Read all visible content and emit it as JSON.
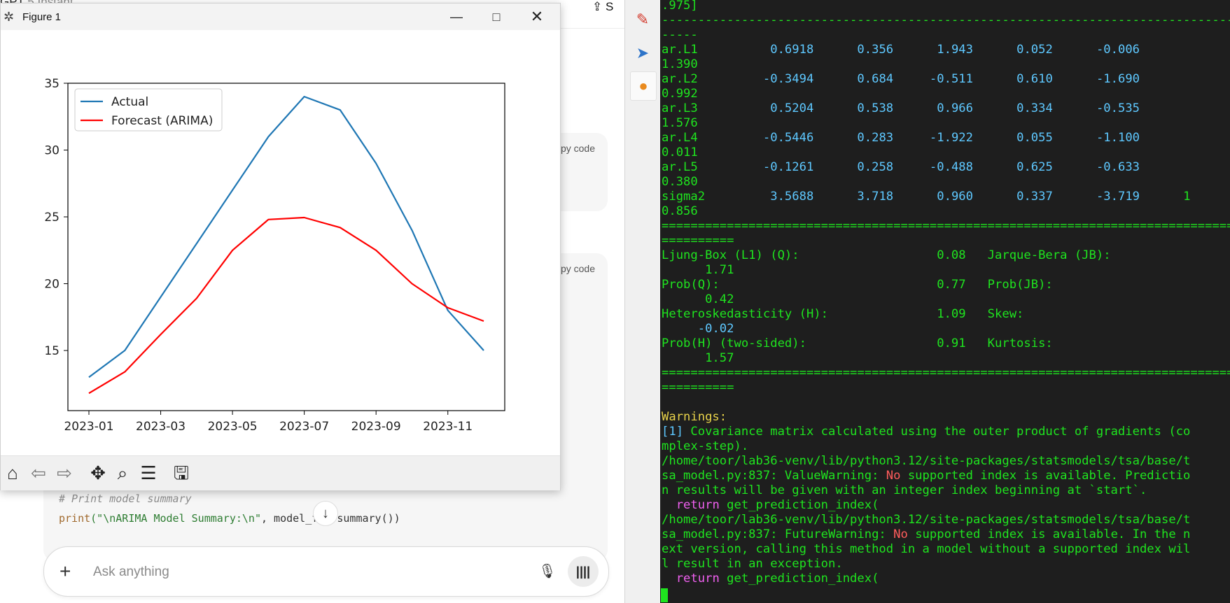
{
  "chat": {
    "title": "GPT",
    "title_sub": "5 Instant",
    "share_label": "S",
    "copy_code_label": "Copy code",
    "code_comment": "# Print model summary",
    "code_print_fn": "print",
    "code_print_str": "(\"\\nARIMA Model Summary:\\n\"",
    "code_print_rest": ", model_fit.summary())",
    "input_placeholder": "Ask anything"
  },
  "figure": {
    "window_title": "Figure 1",
    "toolbar_icons": [
      "home-icon",
      "back-arrow-icon",
      "forward-arrow-icon",
      "pan-icon",
      "zoom-icon",
      "configure-subplots-icon",
      "save-icon"
    ]
  },
  "chart_data": {
    "type": "line",
    "x": [
      "2023-01",
      "2023-02",
      "2023-03",
      "2023-04",
      "2023-05",
      "2023-06",
      "2023-07",
      "2023-08",
      "2023-09",
      "2023-10",
      "2023-11",
      "2023-12"
    ],
    "xticks": [
      "2023-01",
      "2023-03",
      "2023-05",
      "2023-07",
      "2023-09",
      "2023-11"
    ],
    "yticks": [
      15,
      20,
      25,
      30,
      35
    ],
    "ylim": [
      10.5,
      35
    ],
    "series": [
      {
        "name": "Actual",
        "color": "#1f77b4",
        "values": [
          13,
          15,
          19,
          23,
          27,
          31,
          34,
          33,
          29,
          24,
          18,
          15
        ]
      },
      {
        "name": "Forecast (ARIMA)",
        "color": "#ff0000",
        "values": [
          11.8,
          13.4,
          16.2,
          18.9,
          22.5,
          24.8,
          24.95,
          24.2,
          22.5,
          20.0,
          18.2,
          17.2
        ]
      }
    ],
    "legend": "top-left",
    "grid": false,
    "title": "",
    "xlabel": "",
    "ylabel": ""
  },
  "terminal": {
    "lines": [
      ".975]",
      "-----------------------------------------------------------------------------------",
      "-----",
      "ar.L1          0.6918      0.356      1.943      0.052      -0.006",
      "1.390",
      "ar.L2         -0.3494      0.684     -0.511      0.610      -1.690",
      "0.992",
      "ar.L3          0.5204      0.538      0.966      0.334      -0.535",
      "1.576",
      "ar.L4         -0.5446      0.283     -1.922      0.055      -1.100",
      "0.011",
      "ar.L5         -0.1261      0.258     -0.488      0.625      -0.633",
      "0.380",
      "sigma2         3.5688      3.718      0.960      0.337      -3.719      1",
      "0.856",
      "===================================================================================",
      "==========",
      "Ljung-Box (L1) (Q):                   0.08   Jarque-Bera (JB):",
      "      1.71",
      "Prob(Q):                              0.77   Prob(JB):",
      "      0.42",
      "Heteroskedasticity (H):               1.09   Skew:",
      "     -0.02",
      "Prob(H) (two-sided):                  0.91   Kurtosis:",
      "      1.57",
      "===================================================================================",
      "==========",
      "",
      "Warnings:",
      "[1] Covariance matrix calculated using the outer product of gradients (co",
      "mplex-step).",
      "/home/toor/lab36-venv/lib/python3.12/site-packages/statsmodels/tsa/base/t",
      "sa_model.py:837: ValueWarning: No supported index is available. Predictio",
      "n results will be given with an integer index beginning at `start`.",
      "  return get_prediction_index(",
      "/home/toor/lab36-venv/lib/python3.12/site-packages/statsmodels/tsa/base/t",
      "sa_model.py:837: FutureWarning: No supported index is available. In the n",
      "ext version, calling this method in a model without a supported index wil",
      "l result in an exception.",
      "  return get_prediction_index("
    ],
    "colors": {
      "text": "#1fe41f",
      "number": "#5ec8ff",
      "warning_heading": "#e8d24a",
      "no_keyword": "#ff5c5c",
      "return_keyword": "#f060f0"
    }
  }
}
